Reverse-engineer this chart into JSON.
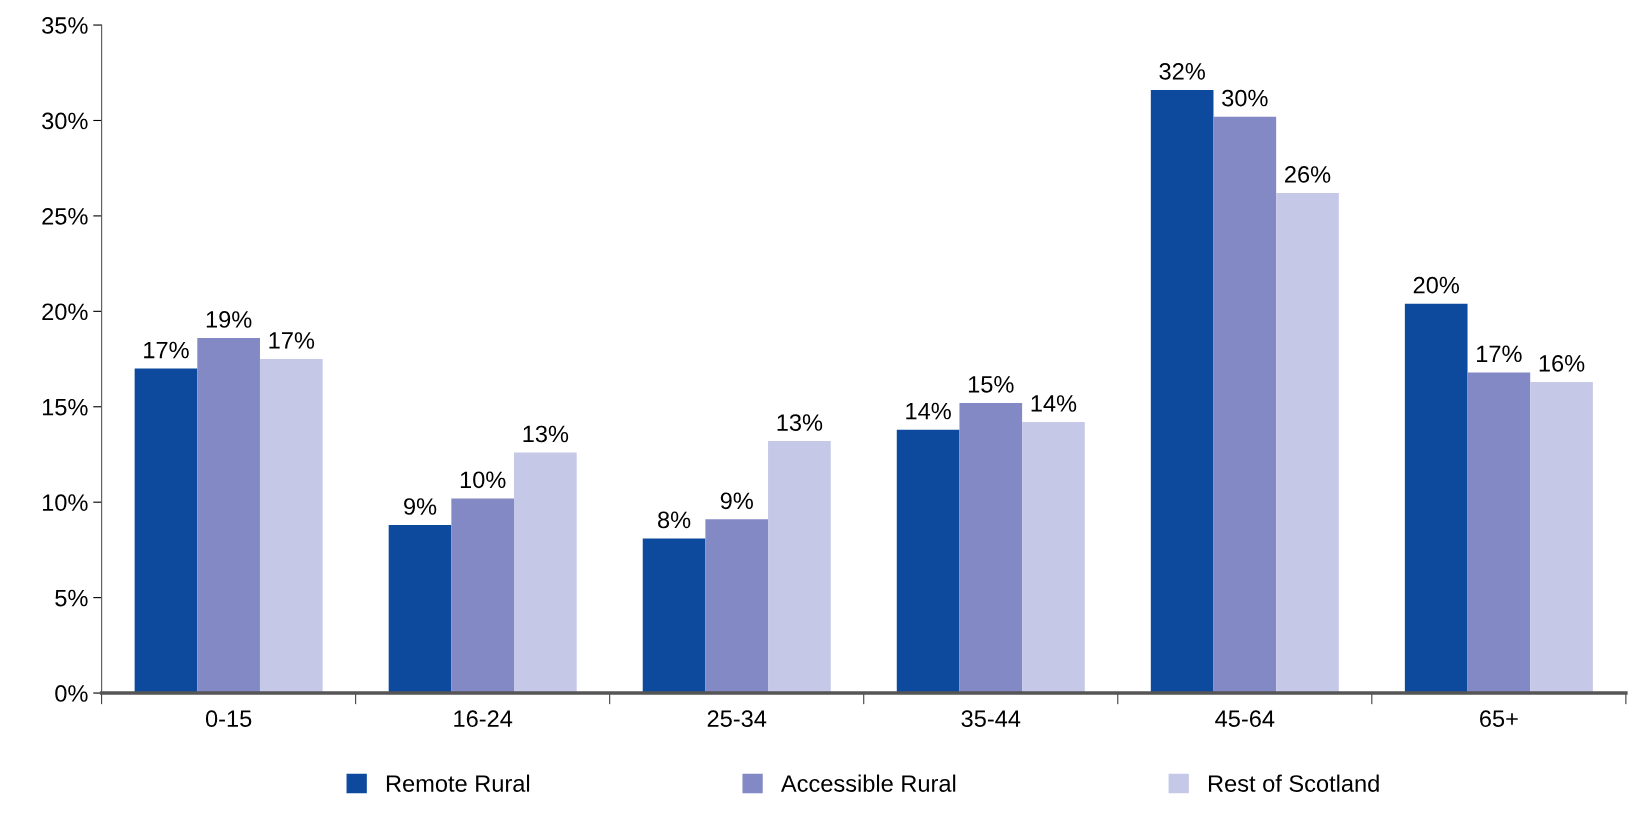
{
  "chart_data": {
    "type": "bar",
    "categories": [
      "0-15",
      "16-24",
      "25-34",
      "35-44",
      "45-64",
      "65+"
    ],
    "series": [
      {
        "name": "Remote Rural",
        "color": "#0d4a9e",
        "values": [
          17.0,
          8.8,
          8.1,
          13.8,
          31.6,
          20.4
        ],
        "value_labels": [
          "17%",
          "9%",
          "8%",
          "14%",
          "32%",
          "20%"
        ]
      },
      {
        "name": "Accessible Rural",
        "color": "#8389c4",
        "values": [
          18.6,
          10.2,
          9.1,
          15.2,
          30.2,
          16.8
        ],
        "value_labels": [
          "19%",
          "10%",
          "9%",
          "15%",
          "30%",
          "17%"
        ]
      },
      {
        "name": "Rest of Scotland",
        "color": "#c5c8e6",
        "values": [
          17.5,
          12.6,
          13.2,
          14.2,
          26.2,
          16.3
        ],
        "value_labels": [
          "17%",
          "13%",
          "13%",
          "14%",
          "26%",
          "16%"
        ]
      }
    ],
    "ylim": [
      0,
      35
    ],
    "yticks": [
      {
        "value": 0,
        "label": "0%"
      },
      {
        "value": 5,
        "label": "5%"
      },
      {
        "value": 10,
        "label": "10%"
      },
      {
        "value": 15,
        "label": "15%"
      },
      {
        "value": 20,
        "label": "20%"
      },
      {
        "value": 25,
        "label": "25%"
      },
      {
        "value": 30,
        "label": "30%"
      },
      {
        "value": 35,
        "label": "35%"
      }
    ],
    "grid": false,
    "legend": "bottom"
  }
}
